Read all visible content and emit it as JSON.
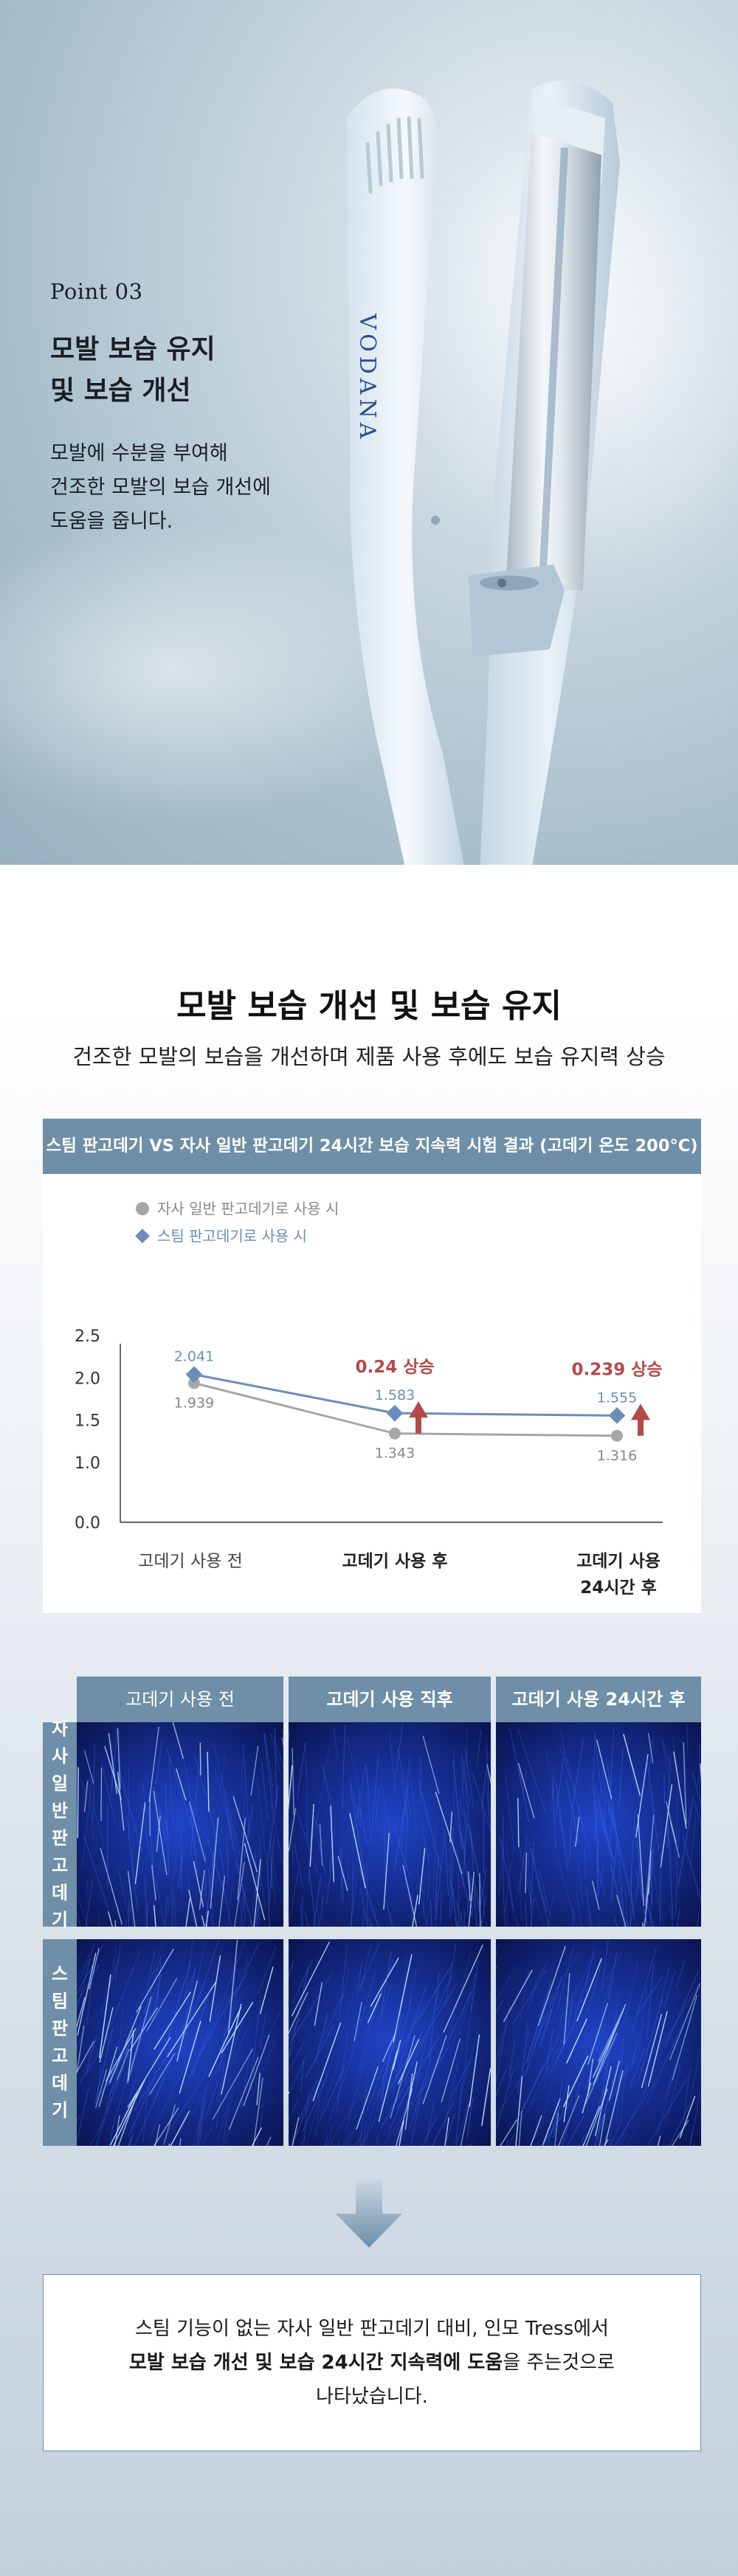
{
  "hero": {
    "point": "Point 03",
    "title_line1": "모발 보습 유지",
    "title_line2": "및 보습 개선",
    "desc_line1": "모발에 수분을 부여해",
    "desc_line2": "건조한 모발의 보습 개선에",
    "desc_line3": "도움을 줍니다.",
    "brand_logo": "VODANA"
  },
  "section": {
    "title": "모발 보습 개선 및 보습 유지",
    "subtitle": "건조한 모발의 보습을 개선하며 제품 사용 후에도 보습 유지력 상승"
  },
  "chart_data": {
    "type": "line",
    "title": "스팀 판고데기 VS 자사 일반 판고데기 24시간 보습 지속력 시험 결과 (고데기 온도 200°C)",
    "categories": [
      "고데기 사용 전",
      "고데기 사용 후",
      "고데기 사용 24시간 후"
    ],
    "category_label_lines": [
      [
        "고데기 사용 전"
      ],
      [
        "고데기 사용 후"
      ],
      [
        "고데기 사용",
        "24시간 후"
      ]
    ],
    "y_ticks": [
      "0.0",
      "1.0",
      "1.5",
      "2.0",
      "2.5"
    ],
    "series": [
      {
        "name": "자사 일반 판고데기로 사용 시",
        "values": [
          1.939,
          1.343,
          1.316
        ],
        "labels": [
          "1.939",
          "1.343",
          "1.316"
        ],
        "color": "#a6a6a6",
        "marker": "circle"
      },
      {
        "name": "스팀 판고데기로 사용 시",
        "values": [
          2.041,
          1.583,
          1.555
        ],
        "labels": [
          "2.041",
          "1.583",
          "1.555"
        ],
        "color": "#6b8dbb",
        "marker": "diamond"
      }
    ],
    "annotations": [
      {
        "category_index": 1,
        "text": "0.24 상승",
        "color": "#b44a48"
      },
      {
        "category_index": 2,
        "text": "0.239 상승",
        "color": "#b44a48"
      }
    ],
    "legend_position": "top-left",
    "grid": false
  },
  "grid": {
    "columns": [
      "고데기 사용 전",
      "고데기 사용 직후",
      "고데기 사용 24시간 후"
    ],
    "rows": [
      {
        "label_chars": [
          "자",
          "사",
          "일",
          "반",
          "판",
          "고",
          "데",
          "기"
        ]
      },
      {
        "label_chars": [
          "스",
          "팀",
          "판",
          "고",
          "데",
          "기"
        ]
      }
    ]
  },
  "summary": {
    "line1": "스팀 기능이 없는 자사 일반 판고데기 대비, 인모 Tress에서",
    "line2_bold": "모발 보습 개선 및 보습 24시간 지속력에 도움",
    "line2_rest": "을 주는것으로",
    "line3": "나타났습니다."
  },
  "colors": {
    "header_bg": "#6e8fa7",
    "steam_series": "#6b8dbb",
    "normal_series": "#a6a6a6",
    "increase": "#b44a48"
  }
}
